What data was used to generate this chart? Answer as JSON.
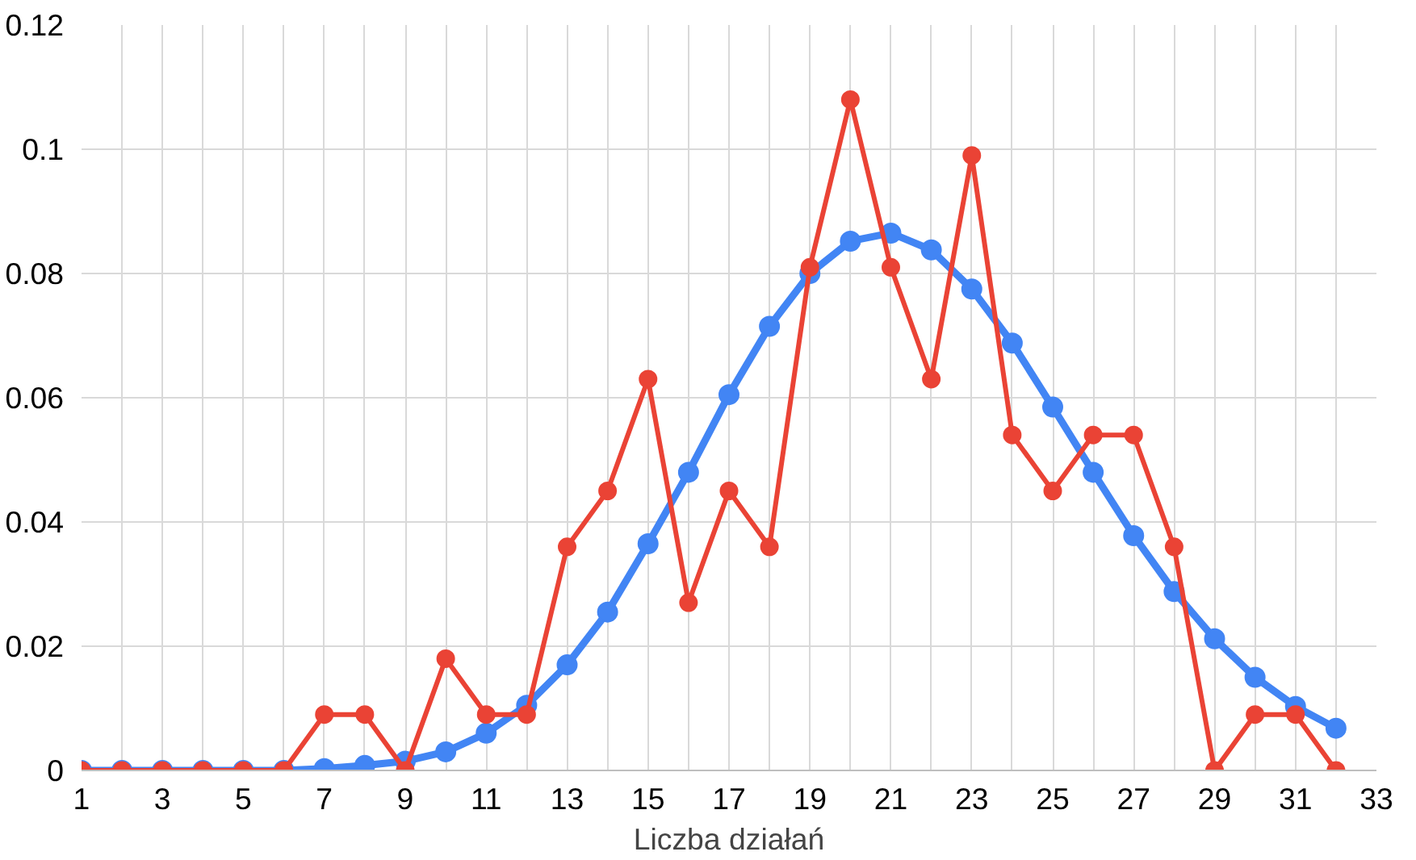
{
  "chart_data": {
    "type": "line",
    "xlabel": "Liczba działań",
    "x": [
      1,
      2,
      3,
      4,
      5,
      6,
      7,
      8,
      9,
      10,
      11,
      12,
      13,
      14,
      15,
      16,
      17,
      18,
      19,
      20,
      21,
      22,
      23,
      24,
      25,
      26,
      27,
      28,
      29,
      30,
      31,
      32
    ],
    "series": [
      {
        "color": "#4285f4",
        "values": [
          0,
          0,
          0,
          0,
          0,
          0,
          0.0003,
          0.0008,
          0.0015,
          0.003,
          0.006,
          0.0105,
          0.017,
          0.0255,
          0.0365,
          0.048,
          0.0605,
          0.0715,
          0.08,
          0.0852,
          0.0865,
          0.0838,
          0.0775,
          0.0688,
          0.0585,
          0.048,
          0.0378,
          0.0288,
          0.0212,
          0.015,
          0.0103,
          0.0068
        ]
      },
      {
        "color": "#ea4335",
        "values": [
          0,
          0,
          0,
          0,
          0,
          0,
          0.009,
          0.009,
          0,
          0.018,
          0.009,
          0.009,
          0.036,
          0.045,
          0.063,
          0.027,
          0.045,
          0.036,
          0.081,
          0.108,
          0.081,
          0.063,
          0.099,
          0.054,
          0.045,
          0.054,
          0.054,
          0.036,
          0,
          0.009,
          0.009,
          0
        ]
      }
    ],
    "xlim": [
      1,
      33
    ],
    "xticks": [
      1,
      {
        "value": 2,
        "label": null
      },
      3,
      {
        "value": 4,
        "label": null
      },
      5,
      {
        "value": 6,
        "label": null
      },
      7,
      {
        "value": 8,
        "label": null
      },
      9,
      {
        "value": 10,
        "label": null
      },
      11,
      {
        "value": 12,
        "label": null
      },
      13,
      {
        "value": 14,
        "label": null
      },
      15,
      {
        "value": 16,
        "label": null
      },
      17,
      {
        "value": 18,
        "label": null
      },
      19,
      {
        "value": 20,
        "label": null
      },
      21,
      {
        "value": 22,
        "label": null
      },
      23,
      {
        "value": 24,
        "label": null
      },
      25,
      {
        "value": 26,
        "label": null
      },
      27,
      {
        "value": 28,
        "label": null
      },
      29,
      {
        "value": 30,
        "label": null
      },
      31,
      {
        "value": 32,
        "label": null
      },
      33
    ],
    "ylim": [
      0,
      0.12
    ],
    "yticks": [
      0,
      0.02,
      0.04,
      0.06,
      0.08,
      0.1,
      0.12
    ],
    "grid": true,
    "marker": "circle",
    "line_style": "solid"
  }
}
